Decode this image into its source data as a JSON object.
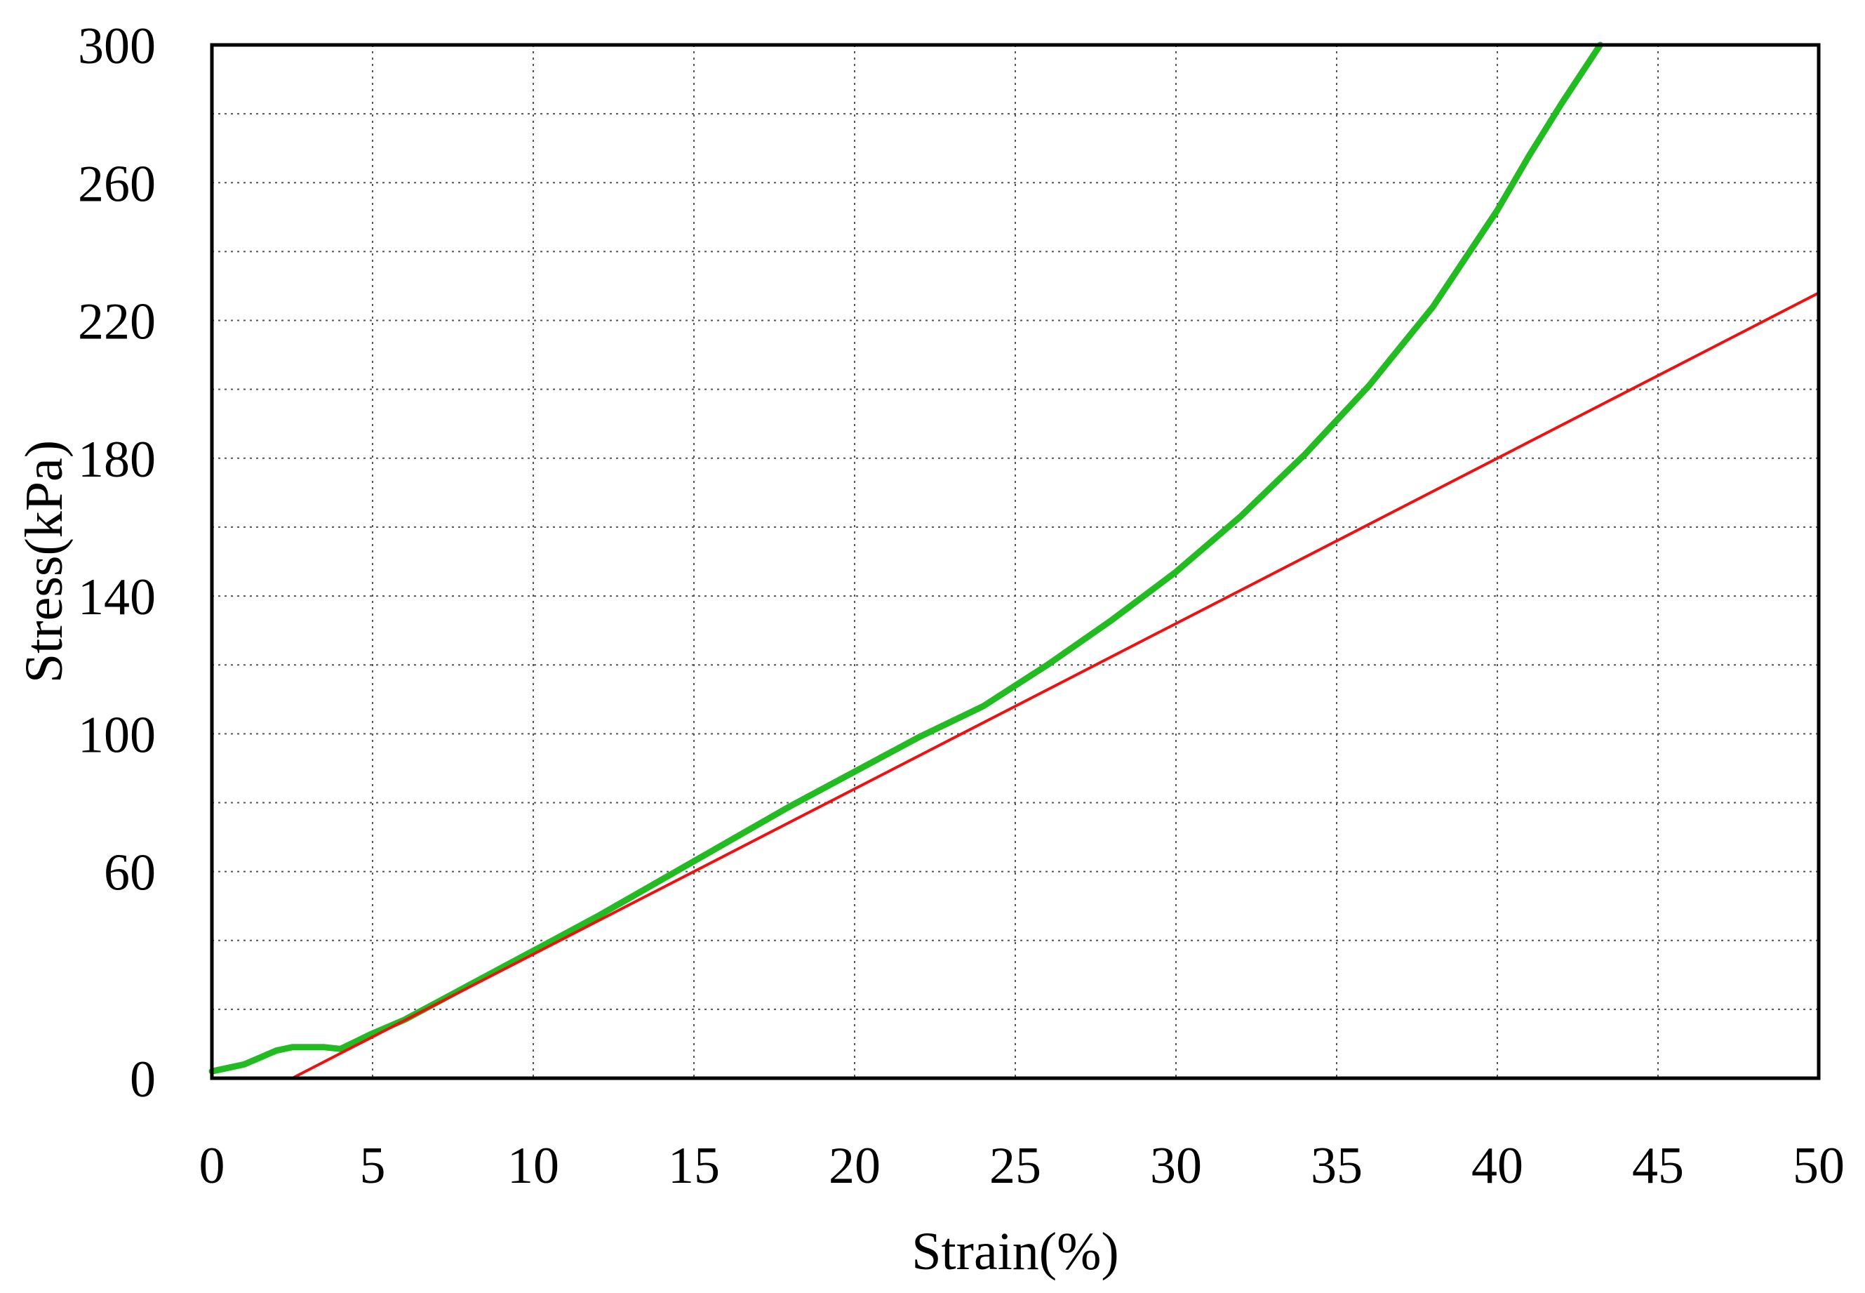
{
  "chart_data": {
    "type": "line",
    "title": "",
    "xlabel": "Strain(%)",
    "ylabel": "Stress(kPa)",
    "xlim": [
      0,
      50
    ],
    "ylim": [
      0,
      300
    ],
    "x_ticks": [
      0,
      5,
      10,
      15,
      20,
      25,
      30,
      35,
      40,
      45,
      50
    ],
    "x_tick_labels": [
      "0",
      "5",
      "10",
      "15",
      "20",
      "25",
      "30",
      "35",
      "40",
      "45",
      "50"
    ],
    "y_ticks": [
      0,
      60,
      100,
      140,
      180,
      220,
      260,
      300
    ],
    "y_tick_labels": [
      "0",
      "60",
      "100",
      "140",
      "180",
      "220",
      "260",
      "300"
    ],
    "y_gridlines": [
      20,
      40,
      60,
      80,
      100,
      120,
      140,
      160,
      180,
      200,
      220,
      240,
      260,
      280
    ],
    "x_gridlines": [
      5,
      10,
      15,
      20,
      25,
      30,
      35,
      40,
      45
    ],
    "grid": true,
    "legend": "none",
    "series": [
      {
        "color": "#22bb22",
        "x": [
          0,
          0.5,
          1,
          1.5,
          2,
          2.5,
          3,
          3.5,
          4,
          5,
          6,
          7,
          8,
          10,
          12,
          15,
          18,
          20,
          22,
          24,
          25,
          26,
          28,
          30,
          32,
          34,
          36,
          38,
          40,
          41,
          42,
          43.2
        ],
        "y": [
          2,
          3,
          4,
          6,
          8,
          9,
          9,
          9,
          8.5,
          13,
          17,
          22,
          27,
          37,
          47,
          63,
          79,
          89,
          99,
          108,
          114,
          120,
          133,
          147,
          163,
          181,
          201,
          224,
          252,
          268,
          283,
          300
        ]
      },
      {
        "color": "#ee1111",
        "x": [
          2.5,
          50
        ],
        "y": [
          0,
          228
        ]
      }
    ]
  }
}
